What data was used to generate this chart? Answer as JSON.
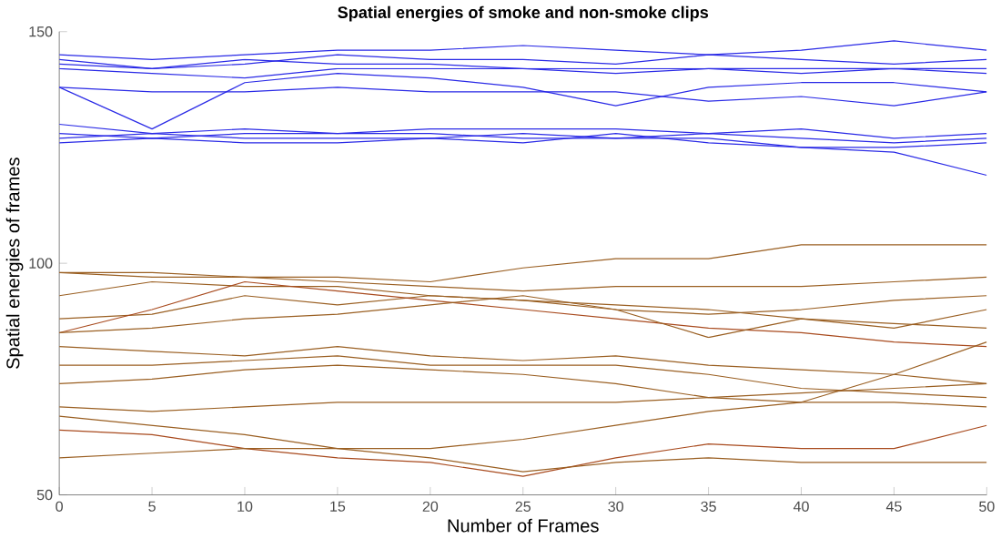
{
  "chart_data": {
    "type": "line",
    "title": "Spatial energies of smoke and non-smoke clips",
    "xlabel": "Number of Frames",
    "ylabel": "Spatial energies of frames",
    "x": [
      0,
      5,
      10,
      15,
      20,
      25,
      30,
      35,
      40,
      45,
      50
    ],
    "xlim": [
      0,
      50
    ],
    "ylim": [
      50,
      150
    ],
    "xticks": [
      0,
      5,
      10,
      15,
      20,
      25,
      30,
      35,
      40,
      45,
      50
    ],
    "yticks": [
      50,
      100,
      150
    ],
    "grid": false,
    "marker": "none",
    "line_style": "solid",
    "series": [
      {
        "color": "#2a2ae6",
        "values": [
          145,
          144,
          145,
          146,
          146,
          147,
          146,
          145,
          146,
          148,
          146
        ]
      },
      {
        "color": "#2a2ae6",
        "values": [
          144,
          142,
          143,
          145,
          144,
          144,
          143,
          145,
          144,
          143,
          144
        ]
      },
      {
        "color": "#2a2ae6",
        "values": [
          143,
          142,
          144,
          143,
          143,
          142,
          141,
          142,
          142,
          142,
          142
        ]
      },
      {
        "color": "#2a2ae6",
        "values": [
          142,
          141,
          140,
          142,
          142,
          142,
          142,
          142,
          141,
          142,
          141
        ]
      },
      {
        "color": "#2a2ae6",
        "values": [
          138,
          129,
          139,
          141,
          140,
          138,
          134,
          138,
          139,
          139,
          137
        ]
      },
      {
        "color": "#2a2ae6",
        "values": [
          138,
          137,
          137,
          138,
          137,
          137,
          137,
          135,
          136,
          134,
          137
        ]
      },
      {
        "color": "#2a2ae6",
        "values": [
          130,
          128,
          129,
          128,
          129,
          129,
          129,
          128,
          129,
          127,
          128
        ]
      },
      {
        "color": "#2a2ae6",
        "values": [
          128,
          127,
          128,
          128,
          128,
          127,
          127,
          128,
          127,
          126,
          127
        ]
      },
      {
        "color": "#2a2ae6",
        "values": [
          127,
          128,
          127,
          127,
          127,
          128,
          127,
          127,
          125,
          125,
          126
        ]
      },
      {
        "color": "#2a2ae6",
        "values": [
          126,
          127,
          126,
          126,
          127,
          126,
          128,
          126,
          125,
          124,
          119
        ]
      },
      {
        "color": "#9a5f22",
        "values": [
          98,
          98,
          97,
          97,
          96,
          99,
          101,
          101,
          104,
          104,
          104
        ]
      },
      {
        "color": "#9a5f22",
        "values": [
          98,
          97,
          97,
          96,
          95,
          94,
          95,
          95,
          95,
          96,
          97
        ]
      },
      {
        "color": "#9a5f22",
        "values": [
          93,
          96,
          95,
          95,
          93,
          92,
          90,
          89,
          90,
          92,
          93
        ]
      },
      {
        "color": "#9a5f22",
        "values": [
          88,
          89,
          93,
          91,
          93,
          92,
          91,
          90,
          88,
          86,
          90
        ]
      },
      {
        "color": "#a84a1e",
        "values": [
          85,
          90,
          96,
          94,
          92,
          90,
          88,
          86,
          85,
          83,
          82
        ]
      },
      {
        "color": "#9a5f22",
        "values": [
          85,
          86,
          88,
          89,
          91,
          93,
          90,
          84,
          88,
          87,
          86
        ]
      },
      {
        "color": "#9a5f22",
        "values": [
          82,
          81,
          80,
          82,
          80,
          79,
          80,
          78,
          77,
          76,
          74
        ]
      },
      {
        "color": "#9a5f22",
        "values": [
          78,
          78,
          79,
          80,
          78,
          78,
          78,
          76,
          73,
          72,
          71
        ]
      },
      {
        "color": "#9a5f22",
        "values": [
          74,
          75,
          77,
          78,
          77,
          76,
          74,
          71,
          70,
          70,
          69
        ]
      },
      {
        "color": "#9a5f22",
        "values": [
          69,
          68,
          69,
          70,
          70,
          70,
          70,
          71,
          72,
          73,
          74
        ]
      },
      {
        "color": "#9a5f22",
        "values": [
          67,
          65,
          63,
          60,
          60,
          62,
          65,
          68,
          70,
          76,
          83
        ]
      },
      {
        "color": "#a84a1e",
        "values": [
          64,
          63,
          60,
          58,
          57,
          54,
          58,
          61,
          60,
          60,
          65
        ]
      },
      {
        "color": "#9a5f22",
        "values": [
          58,
          59,
          60,
          60,
          58,
          55,
          57,
          58,
          57,
          57,
          57
        ]
      }
    ]
  }
}
